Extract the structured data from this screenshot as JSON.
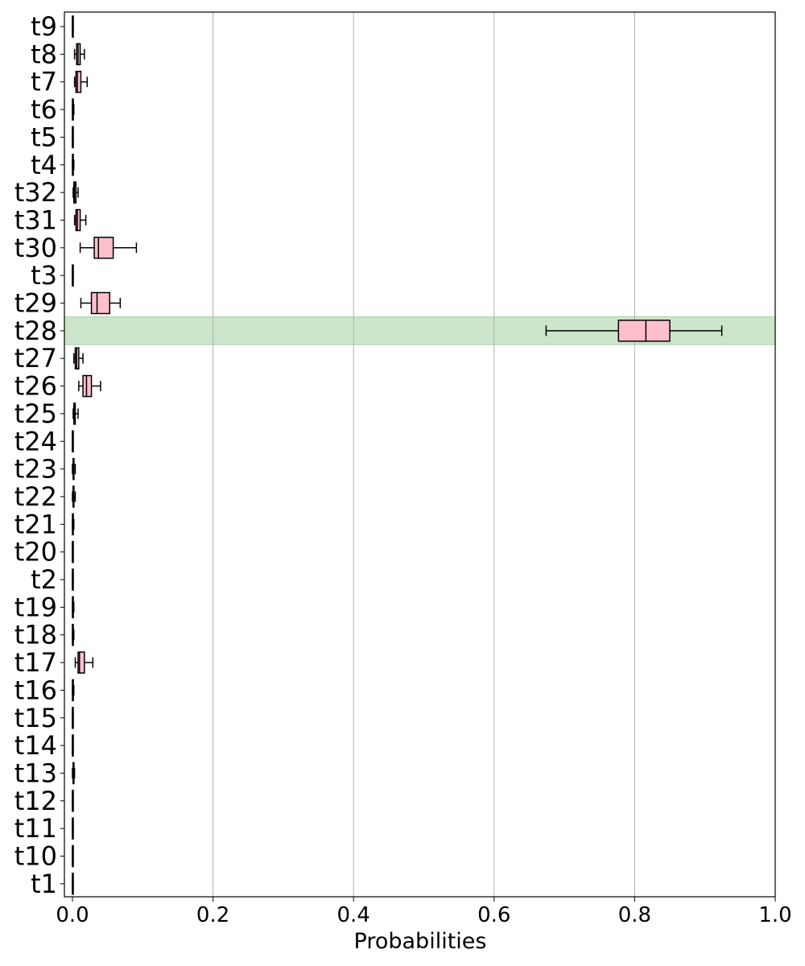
{
  "chart_data": {
    "type": "boxplot",
    "orientation": "horizontal",
    "title": "",
    "xlabel": "Probabilities",
    "ylabel": "",
    "xlim": [
      0.0,
      1.0
    ],
    "x_ticks": [
      0.0,
      0.2,
      0.4,
      0.6,
      0.8,
      1.0
    ],
    "x_tick_labels": [
      "0.0",
      "0.2",
      "0.4",
      "0.6",
      "0.8",
      "1.0"
    ],
    "grid": "vertical",
    "box_color": "#ffc0cb",
    "highlight_color": "#cce6cc",
    "highlight_category": "t28",
    "categories": [
      "t9",
      "t8",
      "t7",
      "t6",
      "t5",
      "t4",
      "t32",
      "t31",
      "t30",
      "t3",
      "t29",
      "t28",
      "t27",
      "t26",
      "t25",
      "t24",
      "t23",
      "t22",
      "t21",
      "t20",
      "t2",
      "t19",
      "t18",
      "t17",
      "t16",
      "t15",
      "t14",
      "t13",
      "t12",
      "t11",
      "t10",
      "t1"
    ],
    "boxes": [
      {
        "min": 0.0,
        "q1": 0.0,
        "median": 0.0,
        "q3": 0.0005,
        "max": 0.001
      },
      {
        "min": 0.003,
        "q1": 0.006,
        "median": 0.008,
        "q3": 0.011,
        "max": 0.017
      },
      {
        "min": 0.003,
        "q1": 0.005,
        "median": 0.007,
        "q3": 0.012,
        "max": 0.021
      },
      {
        "min": 0.0,
        "q1": 0.0,
        "median": 0.001,
        "q3": 0.001,
        "max": 0.002
      },
      {
        "min": 0.0,
        "q1": 0.0,
        "median": 0.0,
        "q3": 0.0005,
        "max": 0.001
      },
      {
        "min": 0.0,
        "q1": 0.0,
        "median": 0.001,
        "q3": 0.001,
        "max": 0.002
      },
      {
        "min": 0.001,
        "q1": 0.002,
        "median": 0.003,
        "q3": 0.005,
        "max": 0.008
      },
      {
        "min": 0.003,
        "q1": 0.005,
        "median": 0.007,
        "q3": 0.011,
        "max": 0.019
      },
      {
        "min": 0.011,
        "q1": 0.031,
        "median": 0.037,
        "q3": 0.058,
        "max": 0.091
      },
      {
        "min": 0.0,
        "q1": 0.0,
        "median": 0.0,
        "q3": 0.0005,
        "max": 0.001
      },
      {
        "min": 0.012,
        "q1": 0.027,
        "median": 0.035,
        "q3": 0.053,
        "max": 0.068
      },
      {
        "min": 0.674,
        "q1": 0.777,
        "median": 0.816,
        "q3": 0.85,
        "max": 0.924
      },
      {
        "min": 0.002,
        "q1": 0.004,
        "median": 0.006,
        "q3": 0.009,
        "max": 0.015
      },
      {
        "min": 0.009,
        "q1": 0.015,
        "median": 0.02,
        "q3": 0.027,
        "max": 0.04
      },
      {
        "min": 0.001,
        "q1": 0.002,
        "median": 0.003,
        "q3": 0.004,
        "max": 0.008
      },
      {
        "min": 0.0,
        "q1": 0.0,
        "median": 0.0,
        "q3": 0.0005,
        "max": 0.001
      },
      {
        "min": 0.0,
        "q1": 0.001,
        "median": 0.001,
        "q3": 0.002,
        "max": 0.004
      },
      {
        "min": 0.0,
        "q1": 0.001,
        "median": 0.001,
        "q3": 0.002,
        "max": 0.004
      },
      {
        "min": 0.0,
        "q1": 0.0,
        "median": 0.001,
        "q3": 0.001,
        "max": 0.002
      },
      {
        "min": 0.0,
        "q1": 0.0,
        "median": 0.0,
        "q3": 0.0005,
        "max": 0.001
      },
      {
        "min": 0.0,
        "q1": 0.0,
        "median": 0.0,
        "q3": 0.0005,
        "max": 0.001
      },
      {
        "min": 0.0,
        "q1": 0.0,
        "median": 0.001,
        "q3": 0.001,
        "max": 0.002
      },
      {
        "min": 0.0,
        "q1": 0.0,
        "median": 0.001,
        "q3": 0.001,
        "max": 0.002
      },
      {
        "min": 0.004,
        "q1": 0.008,
        "median": 0.01,
        "q3": 0.017,
        "max": 0.029
      },
      {
        "min": 0.0,
        "q1": 0.0,
        "median": 0.001,
        "q3": 0.001,
        "max": 0.002
      },
      {
        "min": 0.0,
        "q1": 0.0,
        "median": 0.0,
        "q3": 0.001,
        "max": 0.001
      },
      {
        "min": 0.0,
        "q1": 0.0,
        "median": 0.0,
        "q3": 0.0005,
        "max": 0.001
      },
      {
        "min": 0.0,
        "q1": 0.001,
        "median": 0.001,
        "q3": 0.002,
        "max": 0.003
      },
      {
        "min": 0.0,
        "q1": 0.0,
        "median": 0.0,
        "q3": 0.0005,
        "max": 0.001
      },
      {
        "min": 0.0,
        "q1": 0.0,
        "median": 0.0,
        "q3": 0.0005,
        "max": 0.001
      },
      {
        "min": 0.0,
        "q1": 0.0,
        "median": 0.0,
        "q3": 0.001,
        "max": 0.001
      },
      {
        "min": 0.0,
        "q1": 0.0,
        "median": 0.0,
        "q3": 0.0005,
        "max": 0.001
      }
    ]
  }
}
